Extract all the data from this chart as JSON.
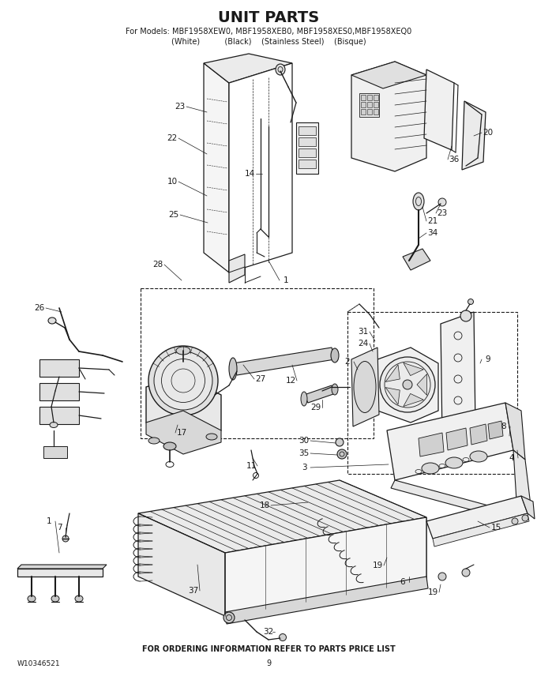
{
  "title": "UNIT PARTS",
  "subtitle1": "For Models: MBF1958XEW0, MBF1958XEB0, MBF1958XES0,MBF1958XEQ0",
  "subtitle2": "(White)          (Black)    (Stainless Steel)    (Bisque)",
  "footer_left": "W10346521",
  "footer_center": "FOR ORDERING INFORMATION REFER TO PARTS PRICE LIST",
  "footer_page": "9",
  "bg_color": "#ffffff",
  "lc": "#1a1a1a",
  "figw": 6.8,
  "figh": 8.8,
  "dpi": 100
}
